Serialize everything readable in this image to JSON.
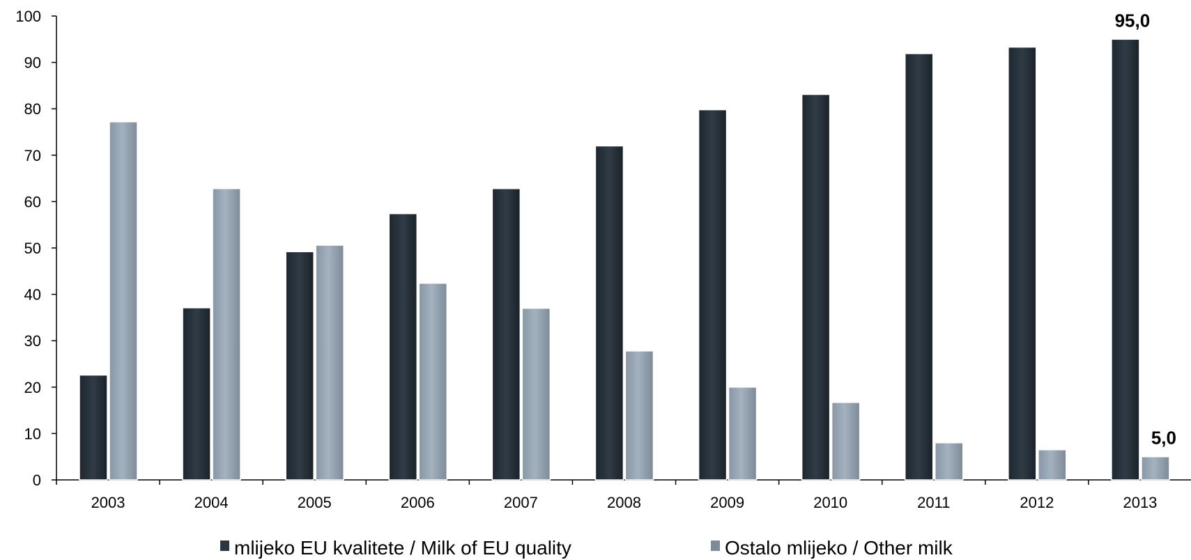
{
  "chart_data": {
    "type": "bar",
    "categories": [
      "2003",
      "2004",
      "2005",
      "2006",
      "2007",
      "2008",
      "2009",
      "2010",
      "2011",
      "2012",
      "2013"
    ],
    "series": [
      {
        "name": "mlijeko EU kvalitete / Milk of EU quality",
        "color": "#2b3640",
        "values": [
          22.6,
          37.1,
          49.2,
          57.4,
          62.8,
          72.0,
          79.8,
          83.1,
          91.9,
          93.3,
          95.0
        ]
      },
      {
        "name": "Ostalo mlijeko / Other milk",
        "color": "#96a5b4",
        "values": [
          77.2,
          62.8,
          50.6,
          42.4,
          37.0,
          27.8,
          20.0,
          16.7,
          8.0,
          6.5,
          5.0
        ]
      }
    ],
    "ylim": [
      0,
      100
    ],
    "yticks": [
      "0",
      "10",
      "20",
      "30",
      "40",
      "50",
      "60",
      "70",
      "80",
      "90",
      "100"
    ],
    "data_labels": [
      {
        "series": 0,
        "category": "2013",
        "text": "95,0"
      },
      {
        "series": 1,
        "category": "2013",
        "text": "5,0"
      }
    ],
    "grid": false,
    "legend": "bottom"
  }
}
